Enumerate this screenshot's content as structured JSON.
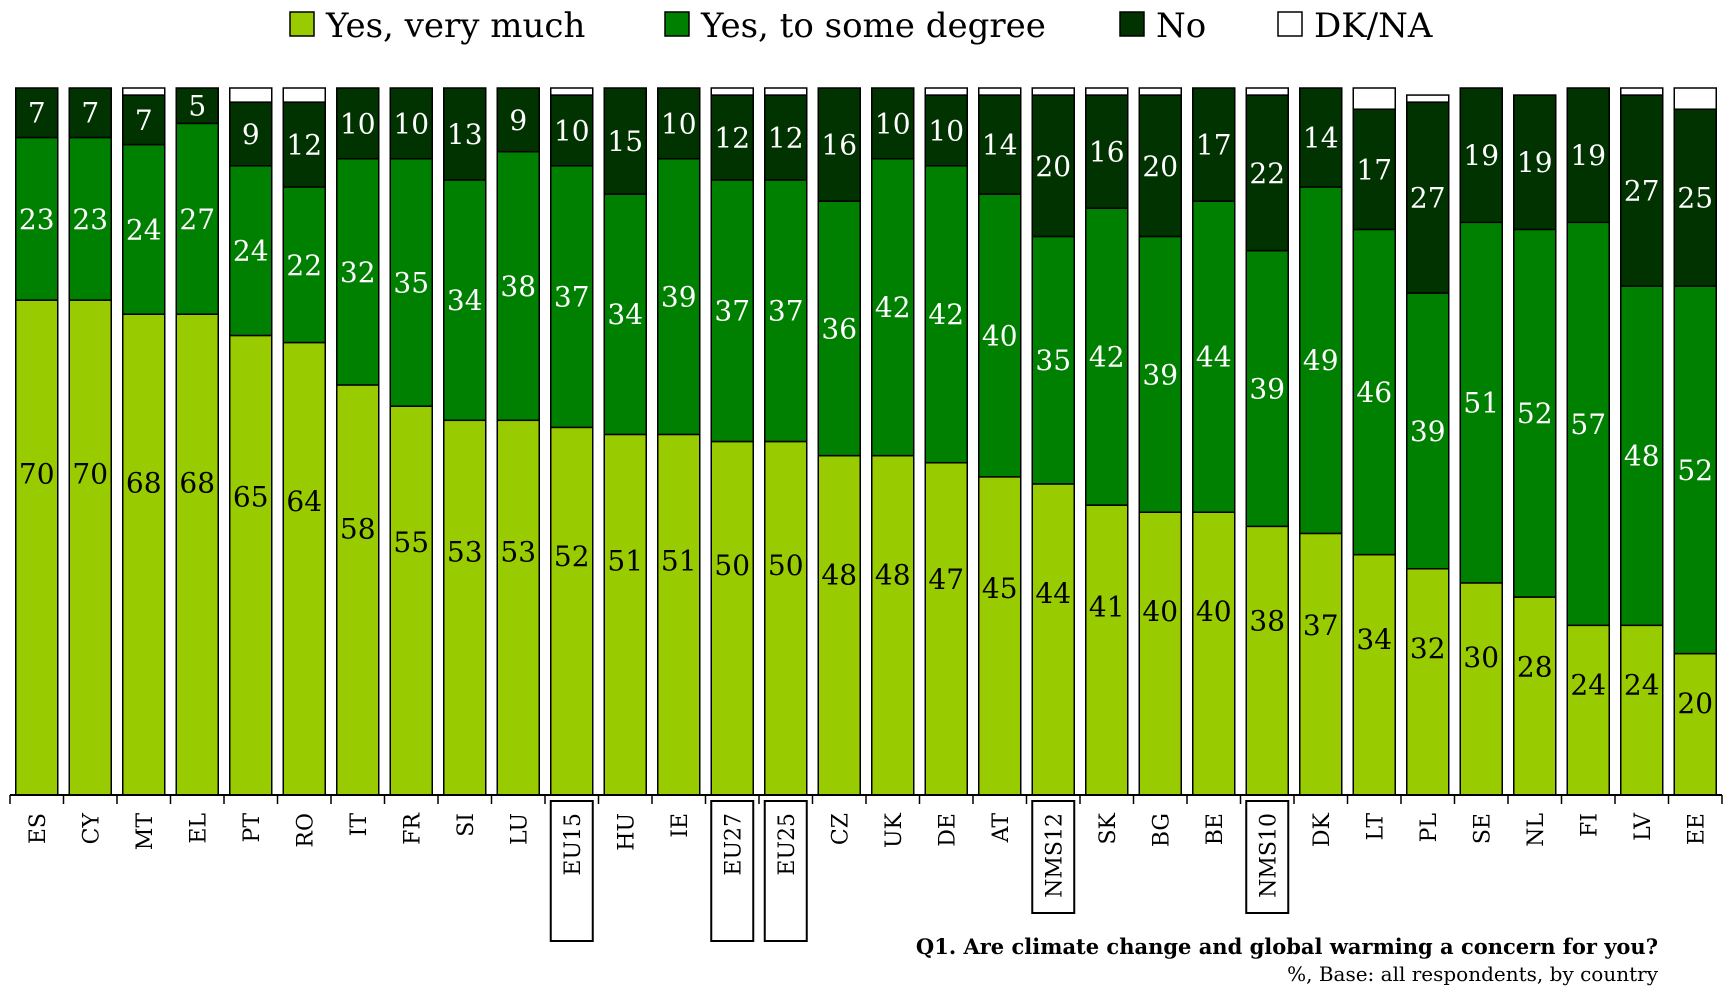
{
  "chart_data": {
    "type": "bar",
    "stacked": true,
    "orientation": "vertical",
    "title": "Q1. Are climate change and global warming a concern for you?",
    "subtitle": "%, Base: all respondents, by country",
    "legend_position": "top",
    "categories": [
      "ES",
      "CY",
      "MT",
      "EL",
      "PT",
      "RO",
      "IT",
      "FR",
      "SI",
      "LU",
      "EU15",
      "HU",
      "IE",
      "EU27",
      "EU25",
      "CZ",
      "UK",
      "DE",
      "AT",
      "NMS12",
      "SK",
      "BG",
      "BE",
      "NMS10",
      "DK",
      "LT",
      "PL",
      "SE",
      "NL",
      "FI",
      "LV",
      "EE"
    ],
    "boxed_categories": [
      "EU15",
      "EU27",
      "EU25",
      "NMS12",
      "NMS10"
    ],
    "ylim": [
      0,
      100
    ],
    "series": [
      {
        "name": "Yes, very much",
        "color": "#99cc00",
        "label_color": "#000000",
        "values": [
          70,
          70,
          68,
          68,
          65,
          64,
          58,
          55,
          53,
          53,
          52,
          51,
          51,
          50,
          50,
          48,
          48,
          47,
          45,
          44,
          41,
          40,
          40,
          38,
          37,
          34,
          32,
          30,
          28,
          24,
          24,
          20
        ]
      },
      {
        "name": "Yes, to some degree",
        "color": "#008000",
        "label_color": "#ffffff",
        "values": [
          23,
          23,
          24,
          27,
          24,
          22,
          32,
          35,
          34,
          38,
          37,
          34,
          39,
          37,
          37,
          36,
          42,
          42,
          40,
          35,
          42,
          39,
          44,
          39,
          49,
          46,
          39,
          51,
          52,
          57,
          48,
          52
        ]
      },
      {
        "name": "No",
        "color": "#003300",
        "label_color": "#ffffff",
        "values": [
          7,
          7,
          7,
          5,
          9,
          12,
          10,
          10,
          13,
          9,
          10,
          15,
          10,
          12,
          12,
          16,
          10,
          10,
          14,
          20,
          16,
          20,
          17,
          22,
          14,
          17,
          27,
          19,
          19,
          19,
          27,
          25
        ]
      },
      {
        "name": "DK/NA",
        "color": "#ffffff",
        "label_color": "#000000",
        "values": [
          0,
          0,
          1,
          0,
          2,
          2,
          0,
          0,
          0,
          0,
          1,
          0,
          0,
          1,
          1,
          0,
          0,
          1,
          1,
          1,
          1,
          1,
          1,
          1,
          0,
          3,
          1,
          0,
          0,
          0,
          1,
          3
        ]
      }
    ]
  }
}
